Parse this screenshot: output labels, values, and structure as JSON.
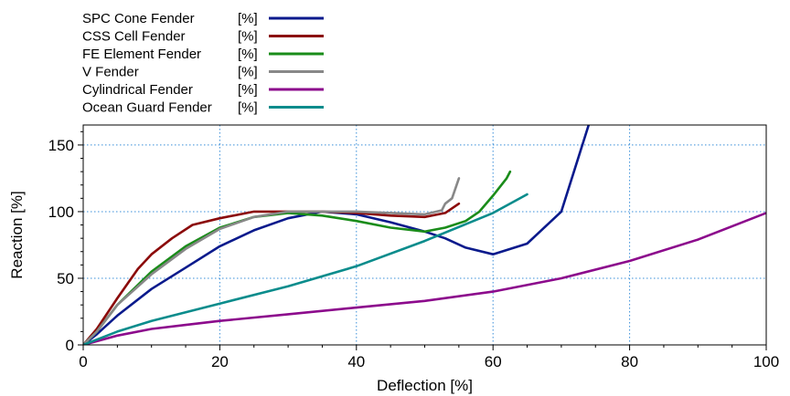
{
  "chart_data": {
    "type": "line",
    "title": "",
    "xlabel": "Deflection [%]",
    "ylabel": "Reaction [%]",
    "xlim": [
      0,
      100
    ],
    "ylim": [
      0,
      165
    ],
    "xticks": [
      0,
      20,
      40,
      60,
      80,
      100
    ],
    "yticks": [
      0,
      50,
      100,
      150
    ],
    "grid": true,
    "legend_position": "top-left, above plot",
    "series": [
      {
        "name": "SPC Cone Fender",
        "unit": "[%]",
        "color": "#0a1a8c",
        "points": [
          [
            0,
            0
          ],
          [
            2,
            8
          ],
          [
            5,
            22
          ],
          [
            10,
            42
          ],
          [
            15,
            58
          ],
          [
            20,
            74
          ],
          [
            25,
            86
          ],
          [
            30,
            95
          ],
          [
            35,
            100
          ],
          [
            40,
            98
          ],
          [
            45,
            92
          ],
          [
            50,
            85
          ],
          [
            53,
            80
          ],
          [
            56,
            73
          ],
          [
            60,
            68
          ],
          [
            65,
            76
          ],
          [
            70,
            100
          ],
          [
            74,
            165
          ]
        ]
      },
      {
        "name": "CSS Cell Fender",
        "unit": "[%]",
        "color": "#8b0a0a",
        "points": [
          [
            0,
            0
          ],
          [
            2,
            12
          ],
          [
            5,
            35
          ],
          [
            8,
            57
          ],
          [
            10,
            68
          ],
          [
            13,
            80
          ],
          [
            16,
            90
          ],
          [
            20,
            95
          ],
          [
            25,
            100
          ],
          [
            30,
            100
          ],
          [
            35,
            100
          ],
          [
            40,
            99
          ],
          [
            45,
            97
          ],
          [
            50,
            96
          ],
          [
            53,
            99
          ],
          [
            55,
            106
          ]
        ]
      },
      {
        "name": "FE Element Fender",
        "unit": "[%]",
        "color": "#1a8c1a",
        "points": [
          [
            0,
            0
          ],
          [
            2,
            10
          ],
          [
            5,
            30
          ],
          [
            10,
            55
          ],
          [
            15,
            74
          ],
          [
            20,
            88
          ],
          [
            25,
            96
          ],
          [
            30,
            99
          ],
          [
            35,
            97
          ],
          [
            40,
            93
          ],
          [
            45,
            88
          ],
          [
            50,
            85
          ],
          [
            53,
            88
          ],
          [
            56,
            93
          ],
          [
            58,
            100
          ],
          [
            60,
            112
          ],
          [
            62,
            125
          ],
          [
            62.5,
            130
          ]
        ]
      },
      {
        "name": "V Fender",
        "unit": "[%]",
        "color": "#888888",
        "points": [
          [
            0,
            0
          ],
          [
            2,
            10
          ],
          [
            5,
            30
          ],
          [
            10,
            53
          ],
          [
            15,
            72
          ],
          [
            20,
            87
          ],
          [
            25,
            96
          ],
          [
            30,
            100
          ],
          [
            35,
            100
          ],
          [
            40,
            100
          ],
          [
            45,
            99
          ],
          [
            50,
            98
          ],
          [
            52.5,
            101
          ],
          [
            53,
            106
          ],
          [
            54,
            110
          ],
          [
            55,
            125
          ]
        ]
      },
      {
        "name": "Cylindrical Fender",
        "unit": "[%]",
        "color": "#8c0a8c",
        "points": [
          [
            0,
            0
          ],
          [
            5,
            7
          ],
          [
            10,
            12
          ],
          [
            15,
            15
          ],
          [
            20,
            18
          ],
          [
            30,
            23
          ],
          [
            40,
            28
          ],
          [
            50,
            33
          ],
          [
            60,
            40
          ],
          [
            70,
            50
          ],
          [
            80,
            63
          ],
          [
            90,
            79
          ],
          [
            100,
            99
          ]
        ]
      },
      {
        "name": "Ocean Guard Fender",
        "unit": "[%]",
        "color": "#0a8c8c",
        "points": [
          [
            0,
            0
          ],
          [
            5,
            10
          ],
          [
            10,
            18
          ],
          [
            20,
            31
          ],
          [
            30,
            44
          ],
          [
            40,
            59
          ],
          [
            50,
            78
          ],
          [
            60,
            99
          ],
          [
            65,
            113
          ]
        ]
      }
    ]
  }
}
